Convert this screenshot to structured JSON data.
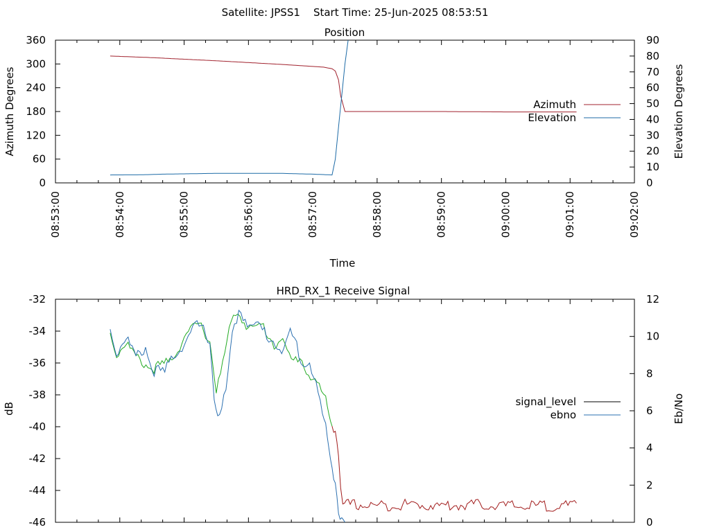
{
  "figure_title": "Satellite: JPSS1    Start Time: 25-Jun-2025 08:53:51",
  "colors": {
    "azimuth": "#a0202c",
    "elevation": "#1c6aa6",
    "signal_red": "#a11a1a",
    "signal_green": "#22aa22",
    "ebno": "#2a6fb0",
    "signal_legend": "#000000"
  },
  "chart_data": [
    {
      "type": "line",
      "title": "Position",
      "xlabel": "Time",
      "ylabel": "Azimuth Degrees",
      "y2label": "Elevation Degrees",
      "xlim": [
        "08:53:00",
        "09:02:00"
      ],
      "xticks": [
        "08:53:00",
        "08:54:00",
        "08:55:00",
        "08:56:00",
        "08:57:00",
        "08:58:00",
        "08:59:00",
        "09:00:00",
        "09:01:00",
        "09:02:00"
      ],
      "ylim": [
        0,
        360
      ],
      "yticks": [
        0,
        60,
        120,
        180,
        240,
        300,
        360
      ],
      "y2lim": [
        0,
        90
      ],
      "y2ticks": [
        0,
        10,
        20,
        30,
        40,
        50,
        60,
        70,
        80,
        90
      ],
      "legend_position": "right",
      "series": [
        {
          "name": "Azimuth",
          "axis": "y",
          "x": [
            "08:53:51",
            "08:54:30",
            "08:55:30",
            "08:56:30",
            "08:57:10",
            "08:57:18",
            "08:57:21",
            "08:57:24",
            "08:57:26",
            "08:57:30",
            "08:58:00",
            "08:59:00",
            "09:00:00",
            "09:01:06"
          ],
          "values": [
            320,
            316,
            308,
            299,
            292,
            288,
            282,
            260,
            220,
            180,
            180,
            180,
            179,
            179
          ]
        },
        {
          "name": "Elevation",
          "axis": "y2",
          "x": [
            "08:53:51",
            "08:54:20",
            "08:54:40",
            "08:55:30",
            "08:56:30",
            "08:57:00",
            "08:57:18",
            "08:57:21",
            "08:57:24",
            "08:57:27",
            "08:57:30",
            "08:57:33"
          ],
          "values": [
            5.0,
            5.1,
            5.5,
            6.0,
            6.0,
            5.5,
            5.0,
            15,
            35,
            55,
            75,
            90
          ]
        }
      ]
    },
    {
      "type": "line",
      "title": "HRD_RX_1 Receive Signal",
      "ylabel": "dB",
      "y2label": "Eb/No",
      "xlim": [
        "08:53:00",
        "09:02:00"
      ],
      "ylim": [
        -46,
        -32
      ],
      "yticks": [
        -46,
        -44,
        -42,
        -40,
        -38,
        -36,
        -34,
        -32
      ],
      "y2lim": [
        0,
        12
      ],
      "y2ticks": [
        0,
        2,
        4,
        6,
        8,
        10,
        12
      ],
      "legend_position": "right",
      "series": [
        {
          "name": "signal_level",
          "axis": "y",
          "x": [
            "08:53:51",
            "08:53:57",
            "08:54:06",
            "08:54:15",
            "08:54:30",
            "08:54:45",
            "08:54:54",
            "08:55:00",
            "08:55:06",
            "08:55:12",
            "08:55:18",
            "08:55:24",
            "08:55:30",
            "08:55:36",
            "08:55:42",
            "08:55:48",
            "08:55:54",
            "08:56:00",
            "08:56:06",
            "08:56:12",
            "08:56:18",
            "08:56:24",
            "08:56:30",
            "08:56:36",
            "08:56:42",
            "08:56:48",
            "08:56:54",
            "08:57:00",
            "08:57:06",
            "08:57:12",
            "08:57:15",
            "08:57:18",
            "08:57:21",
            "08:57:24",
            "08:57:26",
            "08:57:28",
            "08:57:33",
            "08:58:00",
            "08:58:30",
            "08:59:00",
            "08:59:30",
            "09:00:00",
            "09:00:30",
            "09:01:06"
          ],
          "values": [
            -34.0,
            -35.3,
            -34.5,
            -35.5,
            -36.2,
            -35.8,
            -35.0,
            -34.2,
            -33.8,
            -33.4,
            -33.7,
            -34.5,
            -37.5,
            -36.0,
            -33.8,
            -32.6,
            -33.0,
            -33.6,
            -33.7,
            -33.4,
            -34.0,
            -34.7,
            -34.2,
            -35.2,
            -35.8,
            -35.3,
            -36.4,
            -36.8,
            -37.3,
            -38.2,
            -39.0,
            -39.7,
            -40.0,
            -41.5,
            -43.5,
            -44.9,
            -44.7,
            -44.8,
            -44.7,
            -44.8,
            -44.7,
            -44.8,
            -44.8,
            -44.8
          ]
        },
        {
          "name": "ebno",
          "axis": "y2",
          "x": [
            "08:53:51",
            "08:53:57",
            "08:54:06",
            "08:54:15",
            "08:54:24",
            "08:54:30",
            "08:54:42",
            "08:54:48",
            "08:55:00",
            "08:55:06",
            "08:55:12",
            "08:55:18",
            "08:55:24",
            "08:55:28",
            "08:55:33",
            "08:55:39",
            "08:55:45",
            "08:55:51",
            "08:55:57",
            "08:56:03",
            "08:56:09",
            "08:56:15",
            "08:56:21",
            "08:56:27",
            "08:56:33",
            "08:56:39",
            "08:56:45",
            "08:56:51",
            "08:56:57",
            "08:57:03",
            "08:57:09",
            "08:57:12",
            "08:57:15",
            "08:57:18",
            "08:57:21",
            "08:57:24",
            "08:57:27",
            "08:57:30"
          ],
          "values": [
            10.5,
            9.3,
            10.2,
            9.0,
            9.6,
            8.4,
            8.2,
            9.0,
            9.8,
            10.3,
            10.8,
            10.5,
            10.0,
            6.8,
            5.8,
            7.2,
            10.2,
            11.6,
            11.2,
            10.6,
            10.8,
            10.4,
            10.0,
            9.8,
            9.3,
            10.4,
            9.7,
            8.6,
            8.8,
            7.6,
            6.0,
            5.2,
            4.2,
            3.2,
            2.4,
            0.8,
            0.2,
            0.0
          ]
        }
      ]
    }
  ]
}
